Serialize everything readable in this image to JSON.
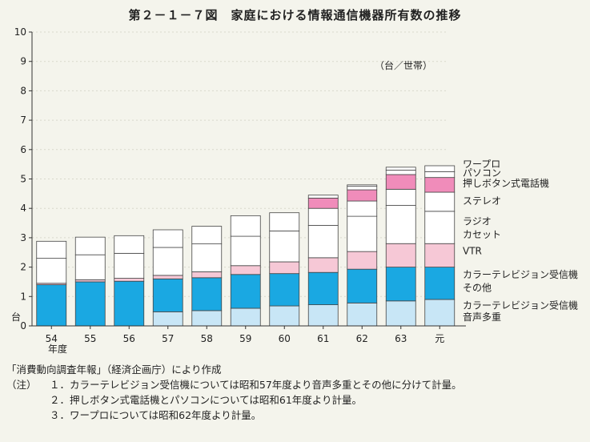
{
  "title": "第２－１－７図　家庭における情報通信機器所有数の推移",
  "chart_data": {
    "type": "bar",
    "stacked": true,
    "unit_label": "（台／世帯）",
    "ylabel": "台",
    "xlabel": "年度",
    "ylim": [
      0,
      10
    ],
    "yticks": [
      "0",
      "1",
      "2",
      "3",
      "4",
      "5",
      "6",
      "7",
      "8",
      "9",
      "10"
    ],
    "categories": [
      "54",
      "55",
      "56",
      "57",
      "58",
      "59",
      "60",
      "61",
      "62",
      "63",
      "元"
    ],
    "series": [
      {
        "name": "カラーテレビジョン受信機音声多重",
        "color": "#c8e6f6",
        "values": [
          0,
          0,
          0,
          0.48,
          0.52,
          0.6,
          0.68,
          0.72,
          0.78,
          0.85,
          0.9
        ]
      },
      {
        "name": "カラーテレビジョン受信機その他",
        "color": "#1aa8e2",
        "values": [
          1.4,
          1.5,
          1.52,
          1.12,
          1.12,
          1.15,
          1.1,
          1.1,
          1.15,
          1.15,
          1.1
        ]
      },
      {
        "name": "VTR",
        "color": "#f6c8d6",
        "values": [
          0.05,
          0.07,
          0.1,
          0.12,
          0.2,
          0.3,
          0.4,
          0.5,
          0.6,
          0.8,
          0.8
        ]
      },
      {
        "name": "ラジオカセット",
        "color": "#ffffff",
        "values": [
          0.85,
          0.85,
          0.85,
          0.95,
          0.95,
          1.0,
          1.05,
          1.1,
          1.2,
          1.3,
          1.1
        ]
      },
      {
        "name": "ステレオ",
        "color": "#ffffff",
        "values": [
          0.58,
          0.6,
          0.6,
          0.6,
          0.6,
          0.7,
          0.62,
          0.58,
          0.52,
          0.55,
          0.65
        ]
      },
      {
        "name": "押しボタン式電話機",
        "color": "#f08cba",
        "values": [
          0,
          0,
          0,
          0,
          0,
          0,
          0,
          0.35,
          0.38,
          0.5,
          0.5
        ]
      },
      {
        "name": "パソコン",
        "color": "#ffffff",
        "values": [
          0,
          0,
          0,
          0,
          0,
          0,
          0,
          0.1,
          0.12,
          0.15,
          0.2
        ]
      },
      {
        "name": "ワープロ",
        "color": "#ffffff",
        "values": [
          0,
          0,
          0,
          0,
          0,
          0,
          0,
          0,
          0.05,
          0.1,
          0.2
        ]
      }
    ],
    "legend": [
      {
        "text": "ワープロ",
        "y": 5.5
      },
      {
        "text": "パソコン",
        "y": 5.2
      },
      {
        "text": "押しボタン式電話機",
        "y": 4.85
      },
      {
        "text": "ステレオ",
        "y": 4.25
      },
      {
        "text": "ラジオ",
        "y": 3.55
      },
      {
        "text": "カセット",
        "y": 3.1
      },
      {
        "text": "VTR",
        "y": 2.55
      },
      {
        "text": "カラーテレビジョン受信機",
        "y": 1.75
      },
      {
        "text": "その他",
        "y": 1.3
      },
      {
        "text": "カラーテレビジョン受信機",
        "y": 0.7
      },
      {
        "text": "音声多重",
        "y": 0.3
      }
    ]
  },
  "source": "「消費動向調査年報」（経済企画庁）により作成",
  "notes": {
    "label": "（注）",
    "items": [
      "１．カラーテレビジョン受信機については昭和57年度より音声多重とその他に分けて計量。",
      "２．押しボタン式電話機とパソコンについては昭和61年度より計量。",
      "３．ワープロについては昭和62年度より計量。"
    ]
  }
}
